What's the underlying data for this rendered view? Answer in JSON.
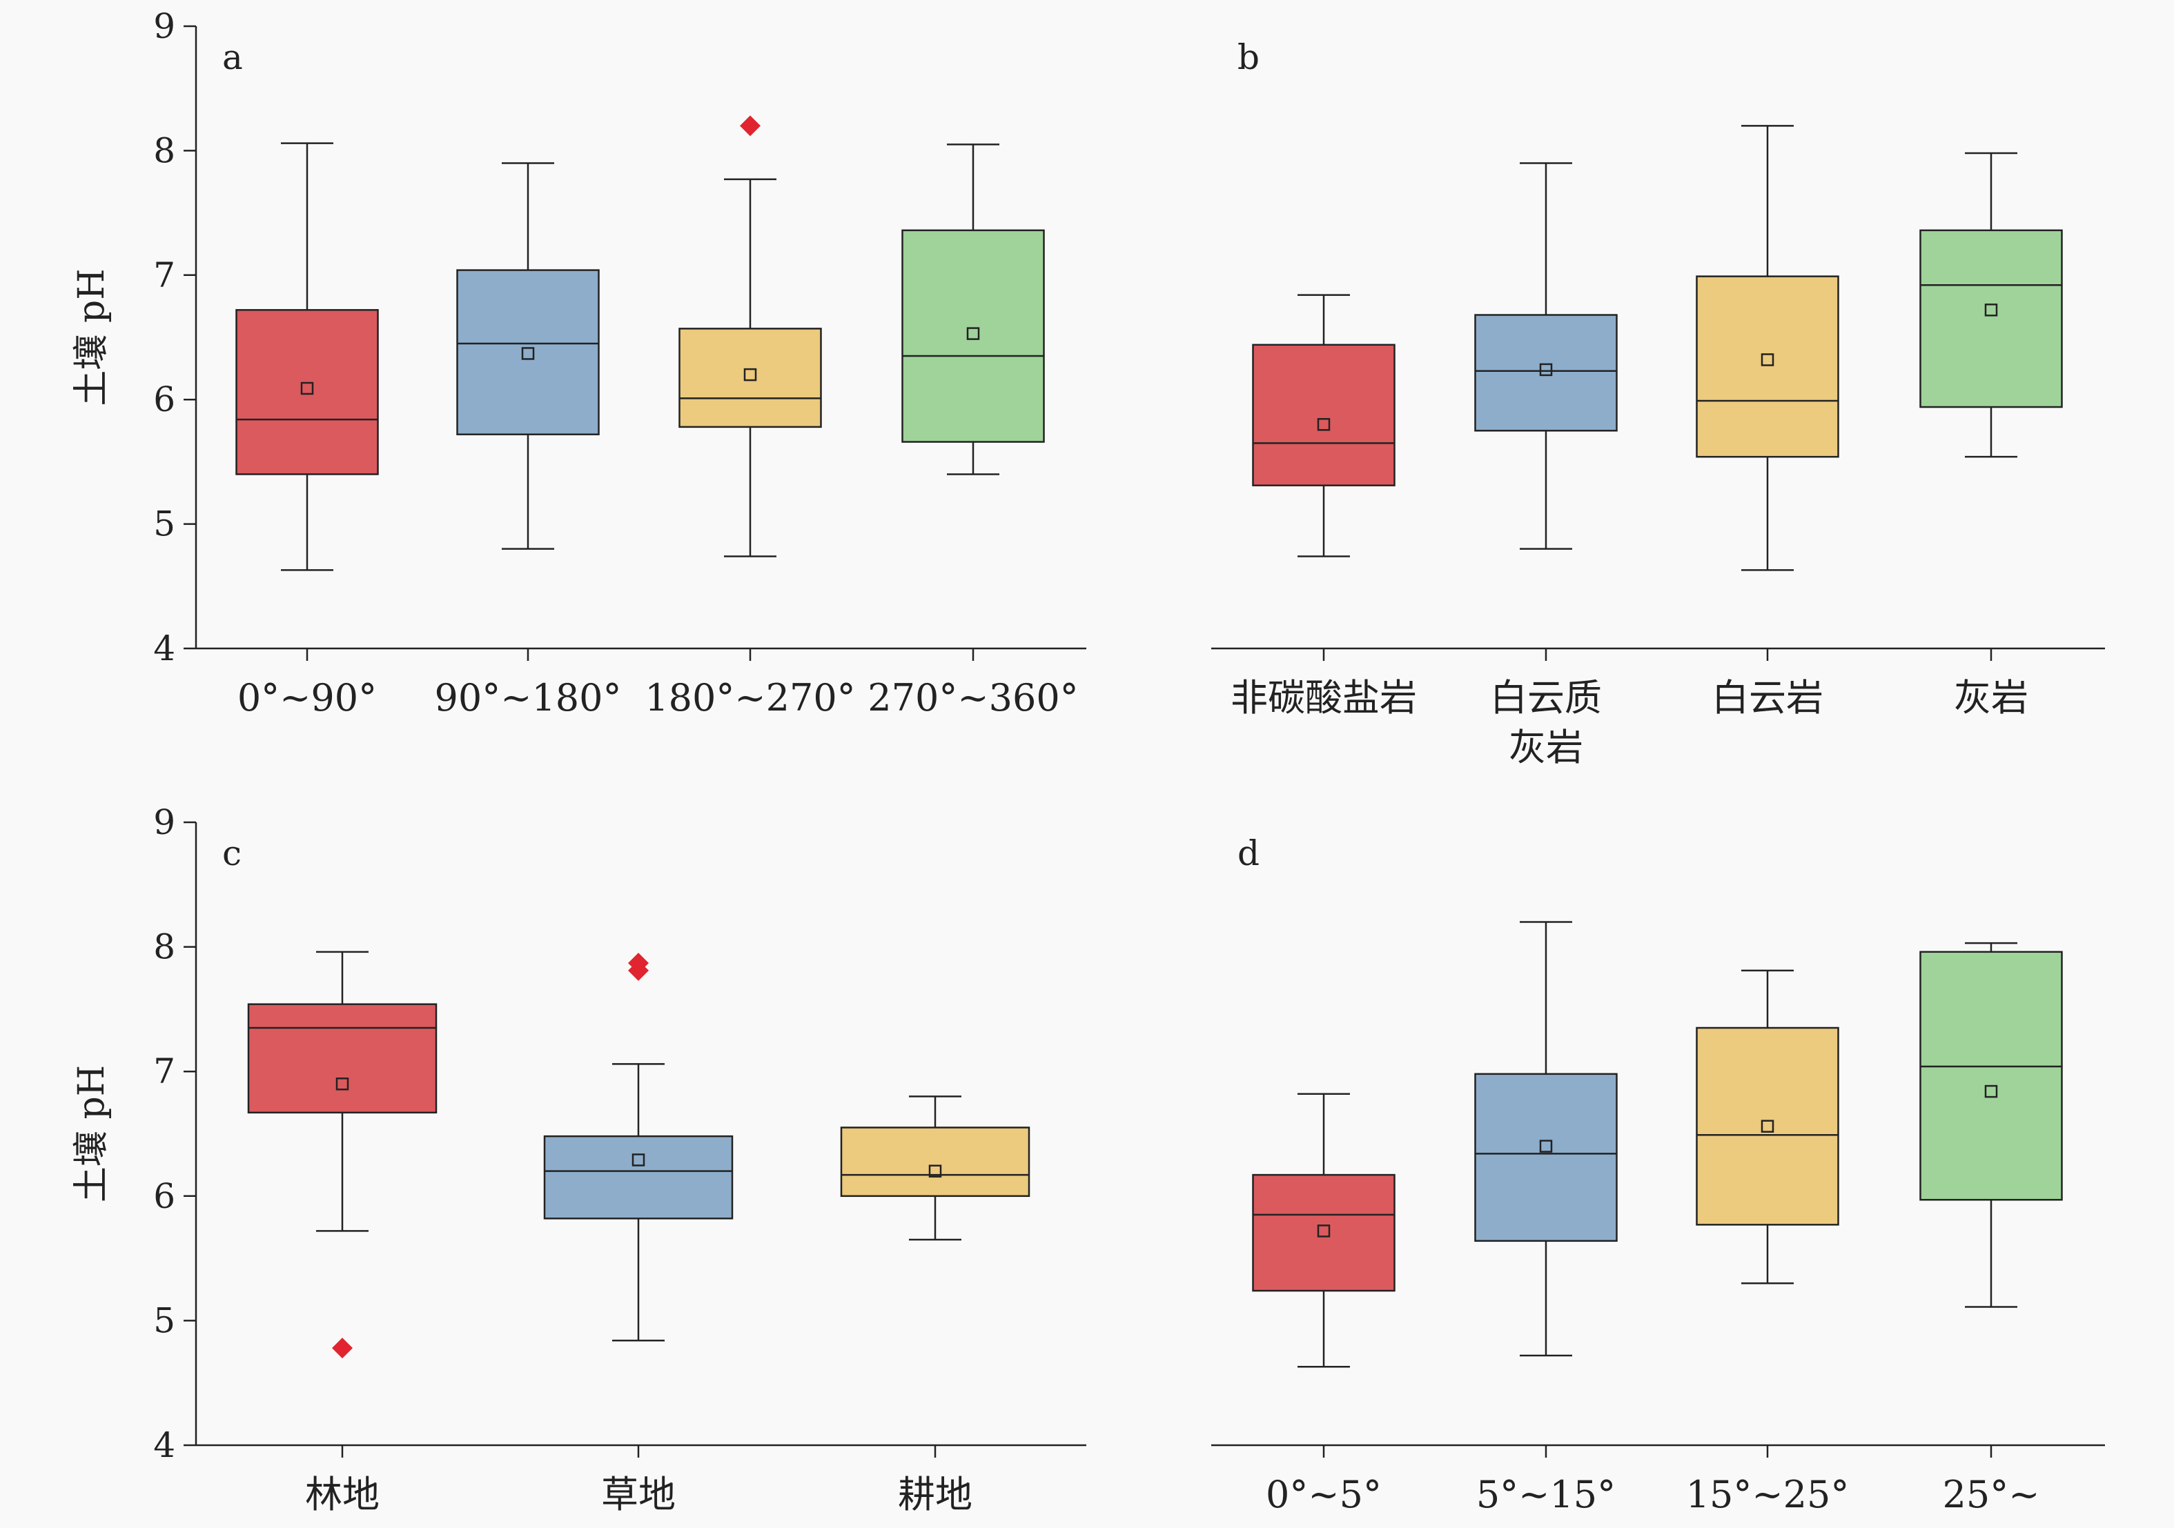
{
  "colors": {
    "red": "#db5a5e",
    "blue": "#8eadcb",
    "yellow": "#ecca7e",
    "green": "#9fd39a",
    "outlier": "#e02530",
    "axis": "#222222"
  },
  "chart_data": [
    {
      "type": "box",
      "panel": "a",
      "ylabel": "土壤 pH",
      "ylim": [
        4,
        9
      ],
      "yticks": [
        "4",
        "5",
        "6",
        "7",
        "8",
        "9"
      ],
      "y_axis_shown": true,
      "categories": [
        "0°~90°",
        "90°~180°",
        "180°~270°",
        "270°~360°"
      ],
      "fill_colors": [
        "red",
        "blue",
        "yellow",
        "green"
      ],
      "boxes": [
        {
          "whisker_low": 4.63,
          "q1": 5.4,
          "median": 5.84,
          "q3": 6.72,
          "whisker_high": 8.06,
          "mean": 6.09,
          "outliers": []
        },
        {
          "whisker_low": 4.8,
          "q1": 5.72,
          "median": 6.45,
          "q3": 7.04,
          "whisker_high": 7.9,
          "mean": 6.37,
          "outliers": []
        },
        {
          "whisker_low": 4.74,
          "q1": 5.78,
          "median": 6.01,
          "q3": 6.57,
          "whisker_high": 7.77,
          "mean": 6.2,
          "outliers": [
            8.2
          ]
        },
        {
          "whisker_low": 5.4,
          "q1": 5.66,
          "median": 6.35,
          "q3": 7.36,
          "whisker_high": 8.05,
          "mean": 6.53,
          "outliers": []
        }
      ]
    },
    {
      "type": "box",
      "panel": "b",
      "ylabel": "",
      "ylim": [
        4,
        9
      ],
      "yticks": [],
      "y_axis_shown": false,
      "categories": [
        [
          "非碳酸盐岩"
        ],
        [
          "白云质",
          "灰岩"
        ],
        [
          "白云岩"
        ],
        [
          "灰岩"
        ]
      ],
      "fill_colors": [
        "red",
        "blue",
        "yellow",
        "green"
      ],
      "boxes": [
        {
          "whisker_low": 4.74,
          "q1": 5.31,
          "median": 5.65,
          "q3": 6.44,
          "whisker_high": 6.84,
          "mean": 5.8,
          "outliers": []
        },
        {
          "whisker_low": 4.8,
          "q1": 5.75,
          "median": 6.23,
          "q3": 6.68,
          "whisker_high": 7.9,
          "mean": 6.24,
          "outliers": []
        },
        {
          "whisker_low": 4.63,
          "q1": 5.54,
          "median": 5.99,
          "q3": 6.99,
          "whisker_high": 8.2,
          "mean": 6.32,
          "outliers": []
        },
        {
          "whisker_low": 5.54,
          "q1": 5.94,
          "median": 6.92,
          "q3": 7.36,
          "whisker_high": 7.98,
          "mean": 6.72,
          "outliers": []
        }
      ]
    },
    {
      "type": "box",
      "panel": "c",
      "ylabel": "土壤 pH",
      "ylim": [
        4,
        9
      ],
      "yticks": [
        "4",
        "5",
        "6",
        "7",
        "8",
        "9"
      ],
      "y_axis_shown": true,
      "categories": [
        "林地",
        "草地",
        "耕地"
      ],
      "fill_colors": [
        "red",
        "blue",
        "yellow"
      ],
      "boxes": [
        {
          "whisker_low": 5.72,
          "q1": 6.67,
          "median": 7.35,
          "q3": 7.54,
          "whisker_high": 7.96,
          "mean": 6.9,
          "outliers": [
            4.78
          ]
        },
        {
          "whisker_low": 4.84,
          "q1": 5.82,
          "median": 6.2,
          "q3": 6.48,
          "whisker_high": 7.06,
          "mean": 6.29,
          "outliers": [
            7.87,
            7.81
          ]
        },
        {
          "whisker_low": 5.65,
          "q1": 6.0,
          "median": 6.17,
          "q3": 6.55,
          "whisker_high": 6.8,
          "mean": 6.2,
          "outliers": []
        }
      ]
    },
    {
      "type": "box",
      "panel": "d",
      "ylabel": "",
      "ylim": [
        4,
        9
      ],
      "yticks": [],
      "y_axis_shown": false,
      "categories": [
        "0°~5°",
        "5°~15°",
        "15°~25°",
        "25°~"
      ],
      "fill_colors": [
        "red",
        "blue",
        "yellow",
        "green"
      ],
      "boxes": [
        {
          "whisker_low": 4.63,
          "q1": 5.24,
          "median": 5.85,
          "q3": 6.17,
          "whisker_high": 6.82,
          "mean": 5.72,
          "outliers": []
        },
        {
          "whisker_low": 4.72,
          "q1": 5.64,
          "median": 6.34,
          "q3": 6.98,
          "whisker_high": 8.2,
          "mean": 6.4,
          "outliers": []
        },
        {
          "whisker_low": 5.3,
          "q1": 5.77,
          "median": 6.49,
          "q3": 7.35,
          "whisker_high": 7.81,
          "mean": 6.56,
          "outliers": []
        },
        {
          "whisker_low": 5.11,
          "q1": 5.97,
          "median": 7.04,
          "q3": 7.96,
          "whisker_high": 8.03,
          "mean": 6.84,
          "outliers": []
        }
      ]
    }
  ]
}
